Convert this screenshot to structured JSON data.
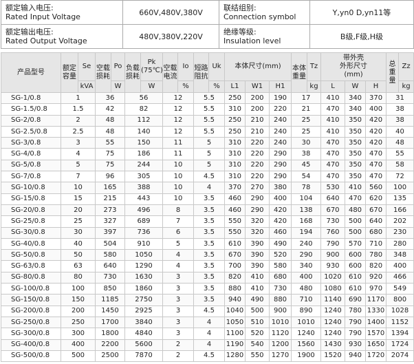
{
  "info_table": {
    "rows": [
      [
        "额定输入电压:\nRated Input Voltage",
        "660V,480V,380V",
        "联结组别:\nConnection symbol",
        "Y,yn0 D,yn11等"
      ],
      [
        "额定输出电压:\nRated Output Voltage",
        "480V,380V,220V",
        "绝缘等级:\nInsulation level",
        "B级,F级,H级"
      ]
    ]
  },
  "main_table": {
    "columns": [
      {
        "label": "产品型号"
      },
      {
        "label": "额定容量",
        "symbol": "Se",
        "unit": "kVA"
      },
      {
        "label": "空载损耗",
        "symbol": "Po",
        "unit": "W"
      },
      {
        "label": "负载损耗",
        "symbol": "Pk\n(75℃)",
        "unit": "W"
      },
      {
        "label": "空载电流",
        "symbol": "Io",
        "unit": "%"
      },
      {
        "label": "短路阻抗",
        "symbol": "Uk",
        "unit": "%"
      },
      {
        "label": "本体尺寸(mm)",
        "sub": [
          "L1",
          "W1",
          "H1"
        ]
      },
      {
        "label": "本体重量",
        "symbol": "Tz",
        "unit": "kg"
      },
      {
        "label": "带外壳\n外形尺寸\n(mm)",
        "sub": [
          "L",
          "W",
          "H"
        ]
      },
      {
        "label": "总重量",
        "symbol": "Zz",
        "unit": "kg"
      }
    ],
    "rows": [
      [
        "SG-1/0.8",
        1,
        36,
        56,
        12,
        5.5,
        250,
        200,
        190,
        17,
        410,
        340,
        370,
        31
      ],
      [
        "SG-1.5/0.8",
        1.5,
        42,
        82,
        12,
        5.5,
        310,
        200,
        220,
        21,
        470,
        340,
        400,
        38
      ],
      [
        "SG-2/0.8",
        2,
        48,
        112,
        12,
        5.5,
        250,
        210,
        240,
        25,
        410,
        350,
        420,
        38
      ],
      [
        "SG-2.5/0.8",
        2.5,
        48,
        140,
        12,
        5.5,
        250,
        210,
        240,
        25,
        410,
        350,
        420,
        40
      ],
      [
        "SG-3/0.8",
        3,
        55,
        150,
        11,
        5,
        310,
        220,
        240,
        30,
        470,
        350,
        420,
        48
      ],
      [
        "SG-4/0.8",
        4,
        75,
        186,
        11,
        5,
        310,
        220,
        290,
        38,
        470,
        350,
        470,
        55
      ],
      [
        "SG-5/0.8",
        5,
        75,
        244,
        10,
        5,
        310,
        220,
        290,
        45,
        470,
        350,
        470,
        58
      ],
      [
        "SG-7/0.8",
        7,
        96,
        305,
        10,
        4.5,
        310,
        220,
        290,
        54,
        470,
        350,
        470,
        72
      ],
      [
        "SG-10/0.8",
        10,
        165,
        388,
        10,
        4,
        370,
        270,
        380,
        78,
        530,
        410,
        560,
        100
      ],
      [
        "SG-15/0.8",
        15,
        215,
        443,
        10,
        3.5,
        460,
        290,
        400,
        104,
        640,
        470,
        620,
        135
      ],
      [
        "SG-20/0.8",
        20,
        273,
        496,
        8,
        3.5,
        460,
        290,
        420,
        138,
        670,
        480,
        670,
        166
      ],
      [
        "SG-25/0.8",
        25,
        327,
        689,
        7,
        3.5,
        550,
        320,
        420,
        168,
        730,
        500,
        640,
        202
      ],
      [
        "SG-30/0.8",
        30,
        397,
        736,
        6,
        3.5,
        550,
        320,
        460,
        194,
        760,
        500,
        680,
        230
      ],
      [
        "SG-40/0.8",
        40,
        504,
        910,
        5,
        3.5,
        610,
        390,
        490,
        240,
        790,
        570,
        710,
        280
      ],
      [
        "SG-50/0.8",
        50,
        580,
        1050,
        4,
        3.5,
        670,
        390,
        520,
        290,
        900,
        600,
        780,
        348
      ],
      [
        "SG-63/0.8",
        63,
        640,
        1290,
        4,
        3.5,
        700,
        390,
        580,
        340,
        930,
        600,
        820,
        400
      ],
      [
        "SG-80/0.8",
        80,
        730,
        1630,
        3,
        3.5,
        820,
        410,
        680,
        400,
        1020,
        610,
        920,
        466
      ],
      [
        "SG-100/0.8",
        100,
        850,
        1860,
        3,
        3.5,
        880,
        410,
        730,
        480,
        1080,
        610,
        970,
        549
      ],
      [
        "SG-150/0.8",
        150,
        1185,
        2750,
        3,
        3.5,
        940,
        490,
        880,
        710,
        1140,
        690,
        1170,
        800
      ],
      [
        "SG-200/0.8",
        200,
        1450,
        2925,
        3,
        4.5,
        1040,
        500,
        900,
        890,
        1240,
        780,
        1330,
        1028
      ],
      [
        "SG-250/0.8",
        250,
        1700,
        3840,
        3,
        4,
        1050,
        510,
        1010,
        1010,
        1240,
        790,
        1400,
        1152
      ],
      [
        "SG-300/0.8",
        300,
        1800,
        4840,
        3,
        4,
        1100,
        520,
        1120,
        1240,
        1240,
        790,
        1570,
        1394
      ],
      [
        "SG-400/0.8",
        400,
        2200,
        5600,
        2,
        4,
        1190,
        540,
        1200,
        1560,
        1430,
        930,
        1650,
        1724
      ],
      [
        "SG-500/0.8",
        500,
        2500,
        7870,
        2,
        4.5,
        1280,
        550,
        1270,
        1900,
        1520,
        940,
        1720,
        2074
      ]
    ]
  }
}
